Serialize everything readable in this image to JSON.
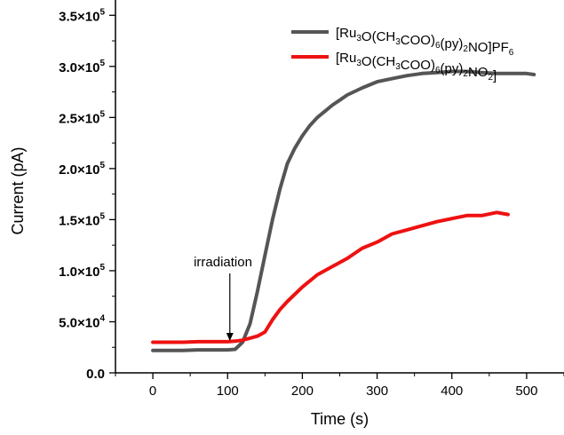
{
  "chart_data": {
    "type": "line",
    "xlabel": "Time (s)",
    "ylabel": "Current (pA)",
    "xlim": [
      -50,
      550
    ],
    "ylim": [
      0,
      365000
    ],
    "x_ticks": [
      0,
      100,
      200,
      300,
      400,
      500
    ],
    "x_tick_labels": [
      "0",
      "100",
      "200",
      "300",
      "400",
      "500"
    ],
    "y_ticks": [
      0,
      50000,
      100000,
      150000,
      200000,
      250000,
      300000,
      350000
    ],
    "y_tick_labels": [
      {
        "mantissa": "0.0",
        "exp": ""
      },
      {
        "mantissa": "5.0×10",
        "exp": "4"
      },
      {
        "mantissa": "1.0×10",
        "exp": "5"
      },
      {
        "mantissa": "1.5×10",
        "exp": "5"
      },
      {
        "mantissa": "2.0×10",
        "exp": "5"
      },
      {
        "mantissa": "2.5×10",
        "exp": "5"
      },
      {
        "mantissa": "3.0×10",
        "exp": "5"
      },
      {
        "mantissa": "3.5×10",
        "exp": "5"
      }
    ],
    "legend_position": "top-right",
    "grid": false,
    "annotation": {
      "text": "irradiation",
      "x": 103
    },
    "series": [
      {
        "name": "[Ru3O(CH3COO)6(py)2NO]PF6",
        "name_parts": [
          {
            "t": "[Ru"
          },
          {
            "t": "3",
            "sub": true
          },
          {
            "t": "O(CH"
          },
          {
            "t": "3",
            "sub": true
          },
          {
            "t": "COO)"
          },
          {
            "t": "6",
            "sub": true
          },
          {
            "t": "(py)"
          },
          {
            "t": "2",
            "sub": true
          },
          {
            "t": "NO]PF"
          },
          {
            "t": "6",
            "sub": true
          }
        ],
        "color": "#555555",
        "x": [
          0,
          20,
          40,
          60,
          80,
          100,
          110,
          120,
          130,
          140,
          150,
          160,
          170,
          180,
          190,
          200,
          210,
          220,
          230,
          240,
          250,
          260,
          280,
          300,
          320,
          340,
          360,
          380,
          400,
          420,
          440,
          460,
          480,
          500,
          510
        ],
        "y": [
          22000,
          22000,
          22000,
          22500,
          22500,
          22500,
          23000,
          30000,
          48000,
          80000,
          115000,
          150000,
          180000,
          205000,
          220000,
          232000,
          242000,
          250000,
          256000,
          262000,
          267000,
          272000,
          279000,
          285000,
          288000,
          291000,
          293000,
          294000,
          295000,
          295000,
          294000,
          293000,
          293000,
          293000,
          292000
        ]
      },
      {
        "name": "[Ru3O(CH3COO)6(py)2NO2]",
        "name_parts": [
          {
            "t": "[Ru"
          },
          {
            "t": "3",
            "sub": true
          },
          {
            "t": "O(CH"
          },
          {
            "t": "3",
            "sub": true
          },
          {
            "t": "COO)"
          },
          {
            "t": "6",
            "sub": true
          },
          {
            "t": "(py)"
          },
          {
            "t": "2",
            "sub": true
          },
          {
            "t": "NO"
          },
          {
            "t": "2",
            "sub": true
          },
          {
            "t": "]"
          }
        ],
        "color": "#ee1111",
        "x": [
          0,
          20,
          40,
          60,
          80,
          100,
          110,
          120,
          130,
          140,
          150,
          160,
          170,
          180,
          200,
          220,
          240,
          260,
          280,
          300,
          320,
          340,
          360,
          380,
          400,
          420,
          440,
          460,
          475
        ],
        "y": [
          30000,
          30000,
          30000,
          30500,
          30500,
          30500,
          31000,
          32000,
          34000,
          36000,
          40000,
          52000,
          62000,
          70000,
          84000,
          96000,
          104000,
          112000,
          122000,
          128000,
          136000,
          140000,
          144000,
          148000,
          151000,
          154000,
          154000,
          157000,
          155000
        ]
      }
    ]
  }
}
